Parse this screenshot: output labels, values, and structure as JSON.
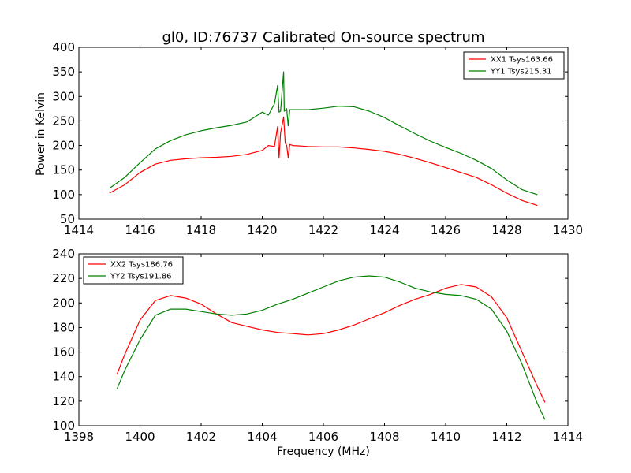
{
  "chart_data": [
    {
      "type": "line",
      "title": "gl0, ID:76737 Calibrated On-source spectrum",
      "xlabel": "",
      "ylabel": "Power in Kelvin",
      "xlim": [
        1414,
        1430
      ],
      "ylim": [
        50,
        400
      ],
      "xticks": [
        1414,
        1416,
        1418,
        1420,
        1422,
        1424,
        1426,
        1428,
        1430
      ],
      "yticks": [
        50,
        100,
        150,
        200,
        250,
        300,
        350,
        400
      ],
      "grid": false,
      "legend_position": "top-right",
      "series": [
        {
          "name": "XX1 Tsys163.66",
          "color": "#ff0000",
          "points": [
            [
              1415.0,
              103
            ],
            [
              1415.5,
              120
            ],
            [
              1416.0,
              145
            ],
            [
              1416.5,
              162
            ],
            [
              1417.0,
              170
            ],
            [
              1417.5,
              173
            ],
            [
              1418.0,
              175
            ],
            [
              1418.5,
              176
            ],
            [
              1419.0,
              178
            ],
            [
              1419.5,
              182
            ],
            [
              1420.0,
              190
            ],
            [
              1420.2,
              200
            ],
            [
              1420.4,
              198
            ],
            [
              1420.5,
              238
            ],
            [
              1420.55,
              175
            ],
            [
              1420.6,
              225
            ],
            [
              1420.7,
              258
            ],
            [
              1420.75,
              205
            ],
            [
              1420.8,
              200
            ],
            [
              1420.85,
              175
            ],
            [
              1420.9,
              202
            ],
            [
              1421.0,
              200
            ],
            [
              1421.5,
              198
            ],
            [
              1422.0,
              197
            ],
            [
              1422.5,
              197
            ],
            [
              1423.0,
              195
            ],
            [
              1423.5,
              192
            ],
            [
              1424.0,
              188
            ],
            [
              1424.5,
              182
            ],
            [
              1425.0,
              174
            ],
            [
              1425.5,
              165
            ],
            [
              1426.0,
              155
            ],
            [
              1426.5,
              145
            ],
            [
              1427.0,
              135
            ],
            [
              1427.5,
              120
            ],
            [
              1428.0,
              103
            ],
            [
              1428.5,
              88
            ],
            [
              1429.0,
              78
            ]
          ]
        },
        {
          "name": "YY1 Tsys215.31",
          "color": "#008000",
          "points": [
            [
              1415.0,
              113
            ],
            [
              1415.5,
              135
            ],
            [
              1416.0,
              165
            ],
            [
              1416.5,
              193
            ],
            [
              1417.0,
              210
            ],
            [
              1417.5,
              222
            ],
            [
              1418.0,
              230
            ],
            [
              1418.5,
              236
            ],
            [
              1419.0,
              241
            ],
            [
              1419.5,
              248
            ],
            [
              1420.0,
              268
            ],
            [
              1420.2,
              262
            ],
            [
              1420.4,
              285
            ],
            [
              1420.5,
              322
            ],
            [
              1420.55,
              268
            ],
            [
              1420.6,
              270
            ],
            [
              1420.7,
              350
            ],
            [
              1420.72,
              270
            ],
            [
              1420.8,
              275
            ],
            [
              1420.85,
              240
            ],
            [
              1420.9,
              273
            ],
            [
              1421.0,
              273
            ],
            [
              1421.5,
              273
            ],
            [
              1422.0,
              276
            ],
            [
              1422.5,
              280
            ],
            [
              1423.0,
              279
            ],
            [
              1423.5,
              270
            ],
            [
              1424.0,
              257
            ],
            [
              1424.5,
              240
            ],
            [
              1425.0,
              224
            ],
            [
              1425.5,
              209
            ],
            [
              1426.0,
              196
            ],
            [
              1426.5,
              184
            ],
            [
              1427.0,
              170
            ],
            [
              1427.5,
              153
            ],
            [
              1428.0,
              130
            ],
            [
              1428.5,
              110
            ],
            [
              1429.0,
              100
            ]
          ]
        }
      ]
    },
    {
      "type": "line",
      "title": "",
      "xlabel": "Frequency (MHz)",
      "ylabel": "",
      "xlim": [
        1398,
        1414
      ],
      "ylim": [
        100,
        240
      ],
      "xticks": [
        1398,
        1400,
        1402,
        1404,
        1406,
        1408,
        1410,
        1412,
        1414
      ],
      "yticks": [
        100,
        120,
        140,
        160,
        180,
        200,
        220,
        240
      ],
      "grid": false,
      "legend_position": "top-left",
      "series": [
        {
          "name": "XX2 Tsys186.76",
          "color": "#ff0000",
          "points": [
            [
              1399.25,
              142
            ],
            [
              1399.5,
              158
            ],
            [
              1400.0,
              186
            ],
            [
              1400.5,
              202
            ],
            [
              1401.0,
              206
            ],
            [
              1401.5,
              204
            ],
            [
              1402.0,
              199
            ],
            [
              1402.5,
              191
            ],
            [
              1403.0,
              184
            ],
            [
              1403.5,
              181
            ],
            [
              1404.0,
              178
            ],
            [
              1404.5,
              176
            ],
            [
              1405.0,
              175
            ],
            [
              1405.5,
              174
            ],
            [
              1406.0,
              175
            ],
            [
              1406.5,
              178
            ],
            [
              1407.0,
              182
            ],
            [
              1407.5,
              187
            ],
            [
              1408.0,
              192
            ],
            [
              1408.5,
              198
            ],
            [
              1409.0,
              203
            ],
            [
              1409.5,
              207
            ],
            [
              1410.0,
              212
            ],
            [
              1410.5,
              215
            ],
            [
              1411.0,
              213
            ],
            [
              1411.5,
              205
            ],
            [
              1412.0,
              188
            ],
            [
              1412.5,
              160
            ],
            [
              1413.0,
              132
            ],
            [
              1413.25,
              119
            ]
          ]
        },
        {
          "name": "YY2 Tsys191.86",
          "color": "#008000",
          "points": [
            [
              1399.25,
              130
            ],
            [
              1399.5,
              145
            ],
            [
              1400.0,
              170
            ],
            [
              1400.5,
              190
            ],
            [
              1401.0,
              195
            ],
            [
              1401.5,
              195
            ],
            [
              1402.0,
              193
            ],
            [
              1402.5,
              191
            ],
            [
              1403.0,
              190
            ],
            [
              1403.5,
              191
            ],
            [
              1404.0,
              194
            ],
            [
              1404.5,
              199
            ],
            [
              1405.0,
              203
            ],
            [
              1405.5,
              208
            ],
            [
              1406.0,
              213
            ],
            [
              1406.5,
              218
            ],
            [
              1407.0,
              221
            ],
            [
              1407.5,
              222
            ],
            [
              1408.0,
              221
            ],
            [
              1408.5,
              217
            ],
            [
              1409.0,
              212
            ],
            [
              1409.5,
              209
            ],
            [
              1410.0,
              207
            ],
            [
              1410.5,
              206
            ],
            [
              1411.0,
              203
            ],
            [
              1411.5,
              195
            ],
            [
              1412.0,
              177
            ],
            [
              1412.5,
              150
            ],
            [
              1413.0,
              118
            ],
            [
              1413.25,
              105
            ]
          ]
        }
      ]
    }
  ]
}
